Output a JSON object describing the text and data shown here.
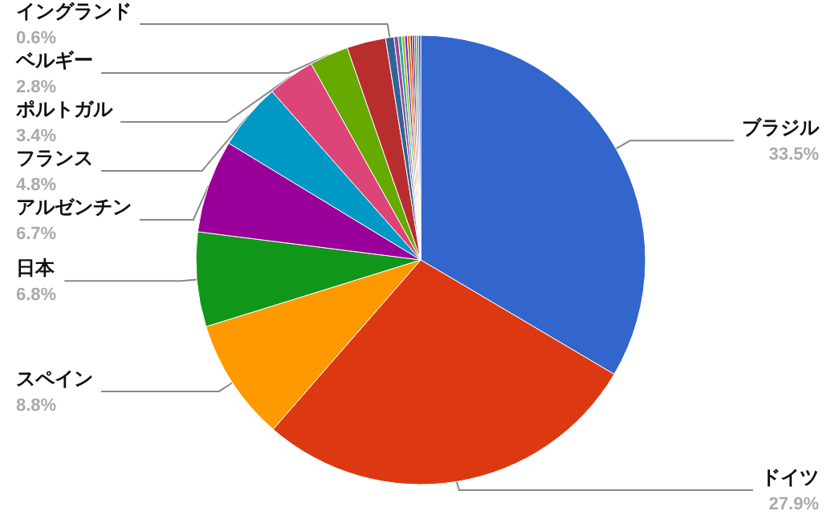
{
  "chart_data": {
    "type": "pie",
    "categories": [
      "ブラジル",
      "ドイツ",
      "スペイン",
      "日本",
      "アルゼンチン",
      "フランス",
      "ポルトガル",
      "ベルギー",
      null,
      "イングランド",
      null,
      null,
      null,
      null,
      null,
      null,
      null,
      null,
      null,
      null
    ],
    "values": [
      33.5,
      27.9,
      8.8,
      6.8,
      6.7,
      4.8,
      3.4,
      2.8,
      2.8,
      0.6,
      0.3,
      0.25,
      0.2,
      0.2,
      0.2,
      0.15,
      0.15,
      0.15,
      0.15,
      0.15
    ],
    "value_labels": [
      "33.5%",
      "27.9%",
      "8.8%",
      "6.8%",
      "6.7%",
      "4.8%",
      "3.4%",
      "2.8%",
      null,
      "0.6%",
      null,
      null,
      null,
      null,
      null,
      null,
      null,
      null,
      null,
      null
    ],
    "colors": [
      "#3366cc",
      "#dc3912",
      "#ff9900",
      "#109618",
      "#990099",
      "#0099c6",
      "#dd4477",
      "#66aa00",
      "#b82e2e",
      "#316395",
      "#994499",
      "#22aa99",
      "#aaaa11",
      "#6633cc",
      "#e67300",
      "#8b0707",
      "#651067",
      "#329262",
      "#5574a6",
      "#3b3eac"
    ]
  }
}
